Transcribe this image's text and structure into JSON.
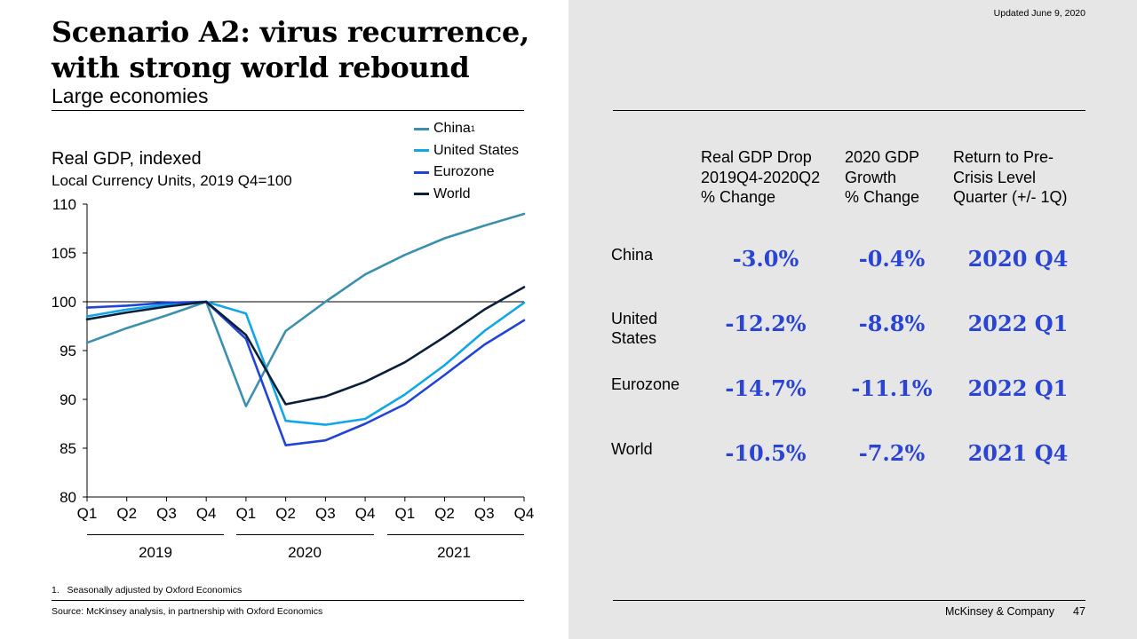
{
  "header": {
    "title": "Scenario A2: virus recurrence, with strong world rebound",
    "subtitle": "Large economies",
    "updated": "Updated June 9, 2020"
  },
  "chart_header": {
    "title": "Real GDP, indexed",
    "subtitle": "Local Currency Units, 2019 Q4=100"
  },
  "legend": [
    {
      "label": "China",
      "sup": "1"
    },
    {
      "label": "United States",
      "sup": ""
    },
    {
      "label": "Eurozone",
      "sup": ""
    },
    {
      "label": "World",
      "sup": ""
    }
  ],
  "chart_data": {
    "type": "line",
    "title": "Real GDP, indexed",
    "subtitle": "Local Currency Units, 2019 Q4=100",
    "x": [
      "Q1",
      "Q2",
      "Q3",
      "Q4",
      "Q1",
      "Q2",
      "Q3",
      "Q4",
      "Q1",
      "Q2",
      "Q3",
      "Q4"
    ],
    "year_groups": [
      "2019",
      "2020",
      "2021"
    ],
    "ylim": [
      80,
      110
    ],
    "yticks": [
      80,
      85,
      90,
      95,
      100,
      105,
      110
    ],
    "reference_line": 100,
    "legend_position": "top-right",
    "series": [
      {
        "name": "China",
        "color": "#3d8fae",
        "values": [
          95.8,
          97.3,
          98.6,
          100.0,
          89.3,
          97.0,
          100.0,
          102.8,
          104.8,
          106.5,
          107.8,
          109.0
        ]
      },
      {
        "name": "United States",
        "color": "#12a6e8",
        "values": [
          98.5,
          99.2,
          99.7,
          100.0,
          98.8,
          87.8,
          87.4,
          88.0,
          90.5,
          93.5,
          97.0,
          99.9
        ]
      },
      {
        "name": "Eurozone",
        "color": "#2243d6",
        "values": [
          99.4,
          99.6,
          99.9,
          100.0,
          96.2,
          85.3,
          85.8,
          87.5,
          89.5,
          92.5,
          95.6,
          98.1
        ]
      },
      {
        "name": "World",
        "color": "#0c1f3a",
        "values": [
          98.2,
          98.9,
          99.5,
          100.0,
          96.6,
          89.5,
          90.3,
          91.8,
          93.8,
          96.4,
          99.2,
          101.5
        ]
      }
    ]
  },
  "footnote": "1.   Seasonally adjusted by Oxford Economics",
  "source": "Source: McKinsey analysis, in partnership with Oxford Economics",
  "table": {
    "headers": [
      "Real GDP Drop\n2019Q4-2020Q2\n% Change",
      "2020 GDP\nGrowth\n% Change",
      "Return to Pre-\nCrisis Level\nQuarter (+/- 1Q)"
    ],
    "rows": [
      {
        "label": "China",
        "drop": "-3.0%",
        "growth": "-0.4%",
        "return": "2020 Q4"
      },
      {
        "label": "United\nStates",
        "drop": "-12.2%",
        "growth": "-8.8%",
        "return": "2022 Q1"
      },
      {
        "label": "Eurozone",
        "drop": "-14.7%",
        "growth": "-11.1%",
        "return": "2022 Q1"
      },
      {
        "label": "World",
        "drop": "-10.5%",
        "growth": "-7.2%",
        "return": "2021 Q4"
      }
    ]
  },
  "footer": {
    "brand": "McKinsey & Company",
    "page": "47"
  }
}
